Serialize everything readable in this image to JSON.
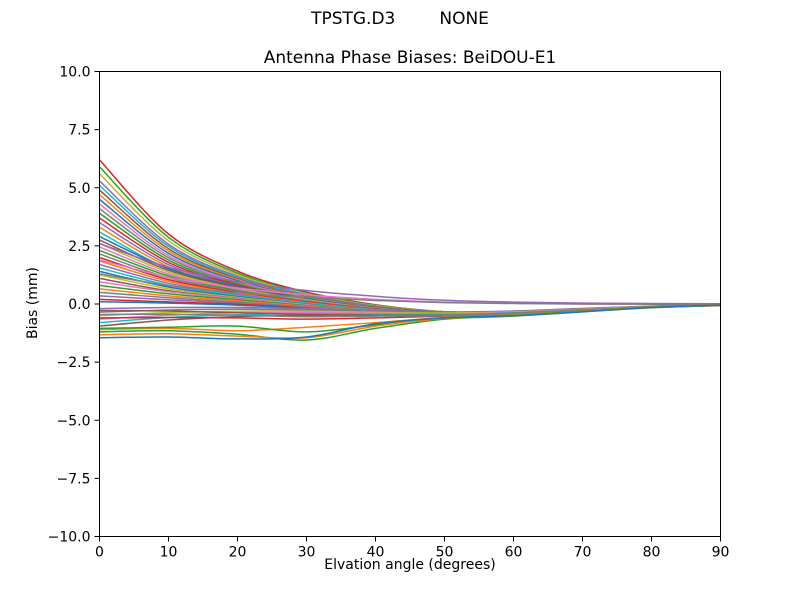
{
  "header": {
    "program": "TPSTG.D3",
    "mode": "NONE"
  },
  "chart_data": {
    "type": "line",
    "title": "Antenna Phase Biases: BeiDOU-E1",
    "xlabel": "Elvation angle (degrees)",
    "ylabel": "Bias (mm)",
    "xlim": [
      0,
      90
    ],
    "ylim": [
      -10,
      10
    ],
    "xticks": [
      0,
      10,
      20,
      30,
      40,
      50,
      60,
      70,
      80,
      90
    ],
    "yticks": [
      -10,
      -7.5,
      -5,
      -2.5,
      0,
      2.5,
      5,
      7.5,
      10
    ],
    "grid": false,
    "legend": "none",
    "x": [
      0,
      10,
      20,
      30,
      40,
      50,
      60,
      70,
      80,
      90
    ],
    "series": [
      {
        "color": "#d62728",
        "y": [
          6.2,
          3.01,
          1.41,
          0.51,
          -0.03,
          -0.33,
          -0.36,
          -0.25,
          -0.11,
          -0.03
        ]
      },
      {
        "color": "#2ca02c",
        "y": [
          5.9,
          2.87,
          1.33,
          0.47,
          -0.05,
          -0.33,
          -0.37,
          -0.25,
          -0.11,
          -0.03
        ]
      },
      {
        "color": "#bcbd22",
        "y": [
          5.6,
          2.72,
          1.26,
          0.44,
          -0.07,
          -0.34,
          -0.37,
          -0.25,
          -0.12,
          -0.03
        ]
      },
      {
        "color": "#9467bd",
        "y": [
          5.3,
          2.57,
          1.19,
          0.4,
          -0.09,
          -0.35,
          -0.38,
          -0.25,
          -0.11,
          -0.03
        ]
      },
      {
        "color": "#17becf",
        "y": [
          5.1,
          2.48,
          1.14,
          0.38,
          -0.1,
          -0.36,
          -0.38,
          -0.25,
          -0.12,
          -0.03
        ]
      },
      {
        "color": "#8c564b",
        "y": [
          4.9,
          2.38,
          1.09,
          0.35,
          -0.11,
          -0.36,
          -0.38,
          -0.26,
          -0.11,
          -0.03
        ]
      },
      {
        "color": "#ff7f0e",
        "y": [
          4.7,
          2.28,
          1.05,
          0.33,
          -0.12,
          -0.37,
          -0.39,
          -0.26,
          -0.12,
          -0.04
        ]
      },
      {
        "color": "#1f77b4",
        "y": [
          4.5,
          2.18,
          1.0,
          0.31,
          -0.13,
          -0.37,
          -0.39,
          -0.26,
          -0.12,
          -0.03
        ]
      },
      {
        "color": "#e377c2",
        "y": [
          4.3,
          2.08,
          0.95,
          0.28,
          -0.14,
          -0.38,
          -0.39,
          -0.26,
          -0.12,
          -0.03
        ]
      },
      {
        "color": "#7f7f7f",
        "y": [
          4.1,
          1.99,
          0.9,
          0.26,
          -0.15,
          -0.38,
          -0.39,
          -0.26,
          -0.12,
          -0.04
        ]
      },
      {
        "color": "#2ca02c",
        "y": [
          3.9,
          1.89,
          0.85,
          0.24,
          -0.17,
          -0.39,
          -0.4,
          -0.26,
          -0.12,
          -0.03
        ]
      },
      {
        "color": "#d62728",
        "y": [
          3.7,
          1.79,
          0.81,
          0.21,
          -0.18,
          -0.4,
          -0.4,
          -0.27,
          -0.12,
          -0.04
        ]
      },
      {
        "color": "#9467bd",
        "y": [
          3.5,
          1.69,
          0.76,
          0.19,
          -0.19,
          -0.4,
          -0.4,
          -0.27,
          -0.12,
          -0.04
        ]
      },
      {
        "color": "#ff7f0e",
        "y": [
          3.3,
          1.6,
          0.71,
          0.17,
          -0.2,
          -0.41,
          -0.4,
          -0.27,
          -0.12,
          -0.04
        ]
      },
      {
        "color": "#17becf",
        "y": [
          3.1,
          1.5,
          0.66,
          0.14,
          -0.21,
          -0.41,
          -0.41,
          -0.27,
          -0.13,
          -0.04
        ]
      },
      {
        "color": "#1f77b4",
        "y": [
          2.9,
          1.53,
          0.75,
          0.22,
          -0.15,
          -0.37,
          -0.38,
          -0.25,
          -0.11,
          -0.03
        ]
      },
      {
        "color": "#8c564b",
        "y": [
          2.75,
          1.45,
          0.71,
          0.2,
          -0.16,
          -0.38,
          -0.39,
          -0.26,
          -0.11,
          -0.03
        ]
      },
      {
        "color": "#bcbd22",
        "y": [
          2.6,
          1.37,
          0.66,
          0.18,
          -0.18,
          -0.39,
          -0.39,
          -0.26,
          -0.11,
          -0.03
        ]
      },
      {
        "color": "#e377c2",
        "y": [
          2.45,
          1.29,
          0.62,
          0.16,
          -0.19,
          -0.39,
          -0.39,
          -0.26,
          -0.12,
          -0.03
        ]
      },
      {
        "color": "#2ca02c",
        "y": [
          2.3,
          1.21,
          0.58,
          0.13,
          -0.2,
          -0.4,
          -0.4,
          -0.26,
          -0.11,
          -0.03
        ]
      },
      {
        "color": "#7f7f7f",
        "y": [
          2.15,
          1.13,
          0.54,
          0.11,
          -0.21,
          -0.41,
          -0.4,
          -0.26,
          -0.12,
          -0.03
        ]
      },
      {
        "color": "#d62728",
        "y": [
          2.0,
          1.05,
          0.49,
          0.09,
          -0.23,
          -0.41,
          -0.4,
          -0.26,
          -0.12,
          -0.03
        ]
      },
      {
        "color": "#ff7f0e",
        "y": [
          1.85,
          0.97,
          0.45,
          0.06,
          -0.24,
          -0.42,
          -0.41,
          -0.27,
          -0.12,
          -0.03
        ]
      },
      {
        "color": "#9467bd",
        "y": [
          1.7,
          0.89,
          0.41,
          0.04,
          -0.25,
          -0.43,
          -0.41,
          -0.27,
          -0.12,
          -0.03
        ]
      },
      {
        "color": "#17becf",
        "y": [
          1.55,
          0.81,
          0.36,
          0.02,
          -0.26,
          -0.43,
          -0.41,
          -0.27,
          -0.12,
          -0.03
        ]
      },
      {
        "color": "#1f77b4",
        "y": [
          1.4,
          0.73,
          0.32,
          -0.01,
          -0.28,
          -0.44,
          -0.42,
          -0.27,
          -0.12,
          -0.03
        ]
      },
      {
        "color": "#bcbd22",
        "y": [
          1.25,
          0.65,
          0.28,
          -0.03,
          -0.29,
          -0.45,
          -0.42,
          -0.27,
          -0.12,
          -0.04
        ]
      },
      {
        "color": "#8c564b",
        "y": [
          1.1,
          0.57,
          0.24,
          -0.05,
          -0.3,
          -0.45,
          -0.42,
          -0.27,
          -0.13,
          -0.04
        ]
      },
      {
        "color": "#e377c2",
        "y": [
          0.95,
          0.53,
          0.23,
          -0.04,
          -0.29,
          -0.44,
          -0.41,
          -0.27,
          -0.12,
          -0.03
        ]
      },
      {
        "color": "#2ca02c",
        "y": [
          0.8,
          0.44,
          0.18,
          -0.07,
          -0.3,
          -0.45,
          -0.42,
          -0.27,
          -0.12,
          -0.03
        ]
      },
      {
        "color": "#ff7f0e",
        "y": [
          0.65,
          0.35,
          0.13,
          -0.1,
          -0.32,
          -0.46,
          -0.43,
          -0.28,
          -0.12,
          -0.03
        ]
      },
      {
        "color": "#7f7f7f",
        "y": [
          0.5,
          0.27,
          0.08,
          -0.13,
          -0.34,
          -0.47,
          -0.43,
          -0.28,
          -0.12,
          -0.04
        ]
      },
      {
        "color": "#9467bd",
        "y": [
          0.35,
          0.18,
          0.04,
          -0.15,
          -0.35,
          -0.48,
          -0.44,
          -0.28,
          -0.13,
          -0.04
        ]
      },
      {
        "color": "#d62728",
        "y": [
          0.2,
          0.09,
          -0.01,
          -0.18,
          -0.37,
          -0.49,
          -0.44,
          -0.28,
          -0.13,
          -0.04
        ]
      },
      {
        "color": "#1f77b4",
        "y": [
          0.1,
          0.04,
          -0.05,
          -0.2,
          -0.38,
          -0.49,
          -0.44,
          -0.29,
          -0.13,
          -0.04
        ]
      },
      {
        "color": "#e377c2",
        "y": [
          1.9,
          1.15,
          0.69,
          0.39,
          0.2,
          0.08,
          0.03,
          0.0,
          0.0,
          0.0
        ]
      },
      {
        "color": "#9467bd",
        "y": [
          2.6,
          1.58,
          0.96,
          0.58,
          0.33,
          0.16,
          0.08,
          0.04,
          0.02,
          0.01
        ]
      },
      {
        "color": "#7f7f7f",
        "y": [
          1.3,
          0.79,
          0.48,
          0.29,
          0.15,
          0.06,
          0.02,
          0.0,
          -0.01,
          -0.01
        ]
      },
      {
        "color": "#9467bd",
        "y": [
          -0.2,
          -0.15,
          -0.15,
          -0.2,
          -0.28,
          -0.34,
          -0.3,
          -0.19,
          -0.09,
          -0.03
        ]
      },
      {
        "color": "#7f7f7f",
        "y": [
          -0.35,
          -0.26,
          -0.23,
          -0.26,
          -0.32,
          -0.37,
          -0.32,
          -0.2,
          -0.1,
          -0.03
        ]
      },
      {
        "color": "#bcbd22",
        "y": [
          -0.5,
          -0.37,
          -0.31,
          -0.31,
          -0.36,
          -0.39,
          -0.34,
          -0.22,
          -0.11,
          -0.05
        ]
      },
      {
        "color": "#e377c2",
        "y": [
          -0.65,
          -0.48,
          -0.38,
          -0.37,
          -0.4,
          -0.42,
          -0.36,
          -0.23,
          -0.12,
          -0.05
        ]
      },
      {
        "color": "#17becf",
        "y": [
          -0.8,
          -0.58,
          -0.46,
          -0.42,
          -0.44,
          -0.45,
          -0.38,
          -0.25,
          -0.14,
          -0.06
        ]
      },
      {
        "color": "#8c564b",
        "y": [
          -0.95,
          -0.69,
          -0.54,
          -0.48,
          -0.48,
          -0.48,
          -0.4,
          -0.26,
          -0.15,
          -0.07
        ]
      },
      {
        "color": "#d62728",
        "y": [
          -0.6,
          -0.58,
          -0.6,
          -0.65,
          -0.6,
          -0.52,
          -0.42,
          -0.28,
          -0.13,
          -0.04
        ]
      },
      {
        "color": "#8c564b",
        "y": [
          -0.28,
          -0.3,
          -0.38,
          -0.45,
          -0.48,
          -0.5,
          -0.42,
          -0.27,
          -0.12,
          -0.04
        ]
      },
      {
        "color": "#7f7f7f",
        "y": [
          -0.45,
          -0.44,
          -0.48,
          -0.55,
          -0.52,
          -0.5,
          -0.41,
          -0.26,
          -0.12,
          -0.04
        ]
      },
      {
        "color": "#ff7f0e",
        "y": [
          -1.1,
          -1.05,
          -1.15,
          -1.0,
          -0.8,
          -0.58,
          -0.46,
          -0.3,
          -0.14,
          -0.05
        ]
      },
      {
        "color": "#2ca02c",
        "y": [
          -1.05,
          -1.0,
          -0.95,
          -1.2,
          -0.9,
          -0.6,
          -0.48,
          -0.3,
          -0.14,
          -0.05
        ]
      },
      {
        "color": "#2ca02c",
        "y": [
          -1.2,
          -1.15,
          -1.3,
          -1.55,
          -1.05,
          -0.65,
          -0.52,
          -0.34,
          -0.16,
          -0.06
        ]
      },
      {
        "color": "#ff7f0e",
        "y": [
          -1.32,
          -1.28,
          -1.38,
          -1.45,
          -0.95,
          -0.62,
          -0.5,
          -0.32,
          -0.15,
          -0.05
        ]
      },
      {
        "color": "#1f77b4",
        "y": [
          -1.45,
          -1.42,
          -1.5,
          -1.42,
          -0.85,
          -0.6,
          -0.5,
          -0.33,
          -0.15,
          -0.05
        ]
      }
    ]
  }
}
